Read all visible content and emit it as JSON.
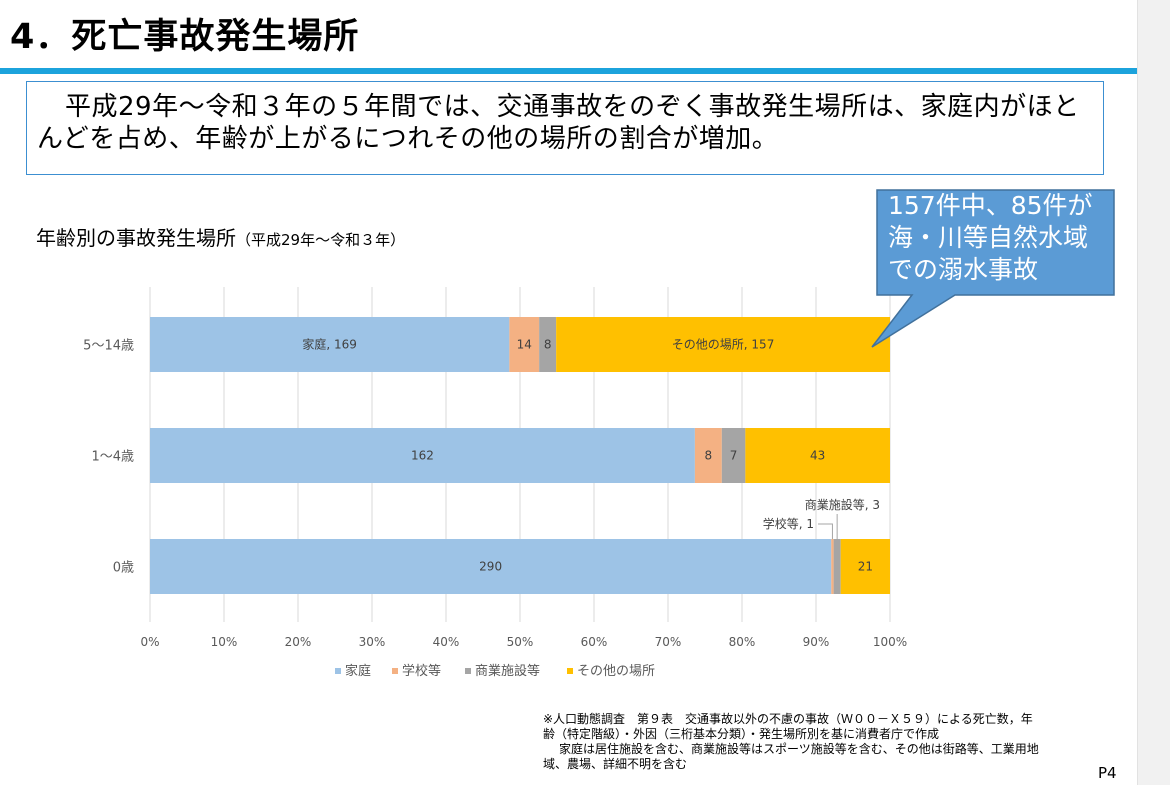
{
  "page": {
    "title": "4．死亡事故発生場所",
    "page_number": "P4"
  },
  "summary": {
    "text": "平成29年～令和３年の５年間では、交通事故をのぞく事故発生場所は、家庭内がほとんどを占め、年齢が上がるにつれその他の場所の割合が増加。"
  },
  "callout": {
    "text": "157件中、85件が\n海・川等自然水域\nでの溺水事故"
  },
  "chart_data": {
    "type": "bar",
    "orientation": "horizontal",
    "stacked": "percent",
    "title": "年齢別の事故発生場所",
    "subtitle": "（平成29年～令和３年）",
    "categories": [
      "5～14歳",
      "1～4歳",
      "0歳"
    ],
    "series": [
      {
        "name": "家庭",
        "color": "#9dc3e6",
        "values": [
          169,
          162,
          290
        ],
        "labels": [
          "家庭, 169",
          "162",
          "290"
        ]
      },
      {
        "name": "学校等",
        "color": "#f4b183",
        "values": [
          14,
          8,
          1
        ],
        "labels": [
          "14",
          "8",
          ""
        ]
      },
      {
        "name": "商業施設等",
        "color": "#a5a5a5",
        "values": [
          8,
          7,
          3
        ],
        "labels": [
          "8",
          "7",
          ""
        ]
      },
      {
        "name": "その他の場所",
        "color": "#ffc000",
        "values": [
          157,
          43,
          21
        ],
        "labels": [
          "その他の場所, 157",
          "43",
          "21"
        ]
      }
    ],
    "annotations": [
      "商業施設等, 3",
      "学校等, 1"
    ],
    "x_ticks": [
      "0%",
      "10%",
      "20%",
      "30%",
      "40%",
      "50%",
      "60%",
      "70%",
      "80%",
      "90%",
      "100%"
    ],
    "xlim": [
      0,
      100
    ],
    "grid": true,
    "legend_position": "bottom"
  },
  "footnote": {
    "line1": "※人口動態調査　第９表　交通事故以外の不慮の事故（Ｗ００－Ｘ５９）による死亡数，年",
    "line2": "齢（特定階級）・外因（三桁基本分類）・発生場所別を基に消費者庁で作成",
    "line3": "家庭は居住施設を含む、商業施設等はスポーツ施設等を含む、その他は街路等、工業用地",
    "line4": "域、農場、詳細不明を含む"
  }
}
